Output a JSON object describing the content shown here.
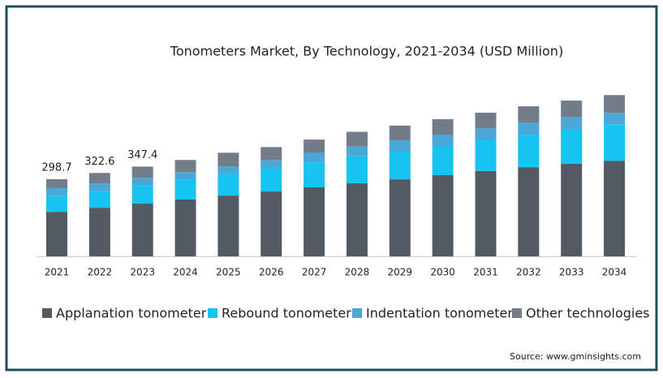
{
  "chart_data": {
    "type": "stacked_bar",
    "title": "Tonometers Market, By Technology, 2021-2034 (USD Million)",
    "categories": [
      "2021",
      "2022",
      "2023",
      "2024",
      "2025",
      "2026",
      "2027",
      "2028",
      "2029",
      "2030",
      "2031",
      "2032",
      "2033",
      "2034"
    ],
    "series": [
      {
        "name": "Applanation tonometer",
        "color": "#545a61",
        "values": [
          172,
          188,
          204,
          220,
          235,
          251,
          267,
          283,
          298,
          314,
          330,
          345,
          358,
          370
        ]
      },
      {
        "name": "Rebound tonometer",
        "color": "#19c3f0",
        "values": [
          63,
          66,
          72,
          78,
          85,
          91,
          97,
          104,
          107,
          113,
          122,
          126,
          132,
          141
        ]
      },
      {
        "name": "Indentation tonometer",
        "color": "#4aa7d8",
        "values": [
          29,
          28,
          28,
          28,
          28,
          31,
          38,
          38,
          44,
          44,
          44,
          47,
          50,
          44
        ]
      },
      {
        "name": "Other technologies",
        "color": "#737d89",
        "values": [
          34.7,
          40.6,
          43.4,
          47,
          53,
          50,
          50,
          57,
          57,
          60,
          60,
          63,
          63,
          69
        ]
      }
    ],
    "totals": [
      298.7,
      322.6,
      347.4
    ],
    "source": "Source: www.gminsights.com"
  }
}
